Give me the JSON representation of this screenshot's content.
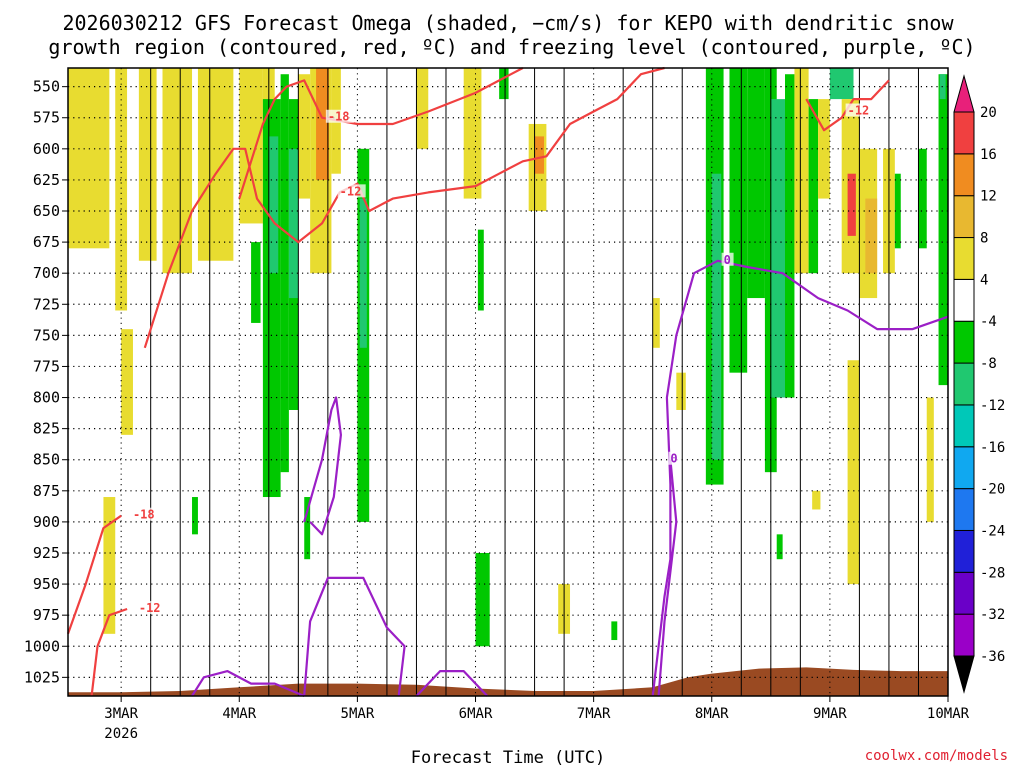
{
  "title_line1": "2026030212 GFS Forecast Omega (shaded, −cm/s) for KEPO with dendritic snow",
  "title_line2": "growth region (contoured, red, ºC) and freezing level (contoured, purple, ºC)",
  "xlabel": "Forecast Time (UTC)",
  "credit": "coolwx.com/models",
  "colors": {
    "red_contour": "#f04040",
    "purple_contour": "#9b1fc6",
    "terrain": "#9a4a22",
    "grid": "#000000"
  },
  "chart_data": {
    "type": "heatmap",
    "title": "2026030212 GFS Forecast Omega (shaded, −cm/s) for KEPO with dendritic snow growth region (contoured, red, ºC) and freezing level (contoured, purple, ºC)",
    "xlabel": "Forecast Time (UTC)",
    "ylabel": "",
    "x_range_days": [
      2.55,
      10.0
    ],
    "y_range_hpa": [
      1040,
      535
    ],
    "y_ticks": [
      550,
      575,
      600,
      625,
      650,
      675,
      700,
      725,
      750,
      775,
      800,
      825,
      850,
      875,
      900,
      925,
      950,
      975,
      1000,
      1025
    ],
    "x_ticks": [
      {
        "day": 3,
        "label": "3MAR",
        "sub": "2026"
      },
      {
        "day": 4,
        "label": "4MAR"
      },
      {
        "day": 5,
        "label": "5MAR"
      },
      {
        "day": 6,
        "label": "6MAR"
      },
      {
        "day": 7,
        "label": "7MAR"
      },
      {
        "day": 8,
        "label": "8MAR"
      },
      {
        "day": 9,
        "label": "9MAR"
      },
      {
        "day": 10,
        "label": "10MAR"
      }
    ],
    "colorbar": {
      "levels": [
        -36,
        -32,
        -28,
        -24,
        -20,
        -16,
        -12,
        -8,
        -4,
        4,
        8,
        12,
        16,
        20
      ],
      "labels": [
        "-36",
        "-32",
        "-28",
        "-24",
        "-20",
        "-16",
        "-12",
        "-8",
        "-4",
        "4",
        "8",
        "12",
        "16",
        "20"
      ],
      "colors": [
        "#b0b0b0",
        "#9a00c8",
        "#6a00c8",
        "#2020d8",
        "#1e78f0",
        "#10a8f0",
        "#00c8b8",
        "#20c870",
        "#00c800",
        "#ffffff",
        "#e8dc30",
        "#e8b830",
        "#f08c20",
        "#f04040",
        "#e8207a"
      ]
    },
    "omega_cells": [
      {
        "t0": 2.55,
        "t1": 2.9,
        "p0": 535,
        "p1": 680,
        "v": 6
      },
      {
        "t0": 2.95,
        "t1": 3.05,
        "p0": 535,
        "p1": 730,
        "v": 6
      },
      {
        "t0": 3.15,
        "t1": 3.3,
        "p0": 535,
        "p1": 690,
        "v": 6
      },
      {
        "t0": 2.85,
        "t1": 2.95,
        "p0": 880,
        "p1": 990,
        "v": 6
      },
      {
        "t0": 3.0,
        "t1": 3.1,
        "p0": 745,
        "p1": 830,
        "v": 6
      },
      {
        "t0": 3.35,
        "t1": 3.6,
        "p0": 535,
        "p1": 700,
        "v": 6
      },
      {
        "t0": 3.65,
        "t1": 3.95,
        "p0": 535,
        "p1": 690,
        "v": 6
      },
      {
        "t0": 3.6,
        "t1": 3.65,
        "p0": 880,
        "p1": 910,
        "v": -6
      },
      {
        "t0": 4.0,
        "t1": 4.2,
        "p0": 535,
        "p1": 660,
        "v": 6
      },
      {
        "t0": 4.1,
        "t1": 4.18,
        "p0": 675,
        "p1": 740,
        "v": -6
      },
      {
        "t0": 4.2,
        "t1": 4.3,
        "p0": 535,
        "p1": 690,
        "v": 6
      },
      {
        "t0": 4.2,
        "t1": 4.35,
        "p0": 560,
        "p1": 880,
        "v": -6
      },
      {
        "t0": 4.25,
        "t1": 4.33,
        "p0": 590,
        "p1": 700,
        "v": -10
      },
      {
        "t0": 4.35,
        "t1": 4.42,
        "p0": 540,
        "p1": 860,
        "v": -6
      },
      {
        "t0": 4.42,
        "t1": 4.5,
        "p0": 560,
        "p1": 810,
        "v": -6
      },
      {
        "t0": 4.42,
        "t1": 4.5,
        "p0": 600,
        "p1": 720,
        "v": -10
      },
      {
        "t0": 4.5,
        "t1": 4.6,
        "p0": 540,
        "p1": 640,
        "v": 6
      },
      {
        "t0": 4.55,
        "t1": 4.6,
        "p0": 880,
        "p1": 930,
        "v": -6
      },
      {
        "t0": 4.6,
        "t1": 4.78,
        "p0": 535,
        "p1": 700,
        "v": 6
      },
      {
        "t0": 4.65,
        "t1": 4.76,
        "p0": 535,
        "p1": 625,
        "v": 14
      },
      {
        "t0": 4.78,
        "t1": 4.86,
        "p0": 535,
        "p1": 620,
        "v": 6
      },
      {
        "t0": 5.0,
        "t1": 5.1,
        "p0": 600,
        "p1": 900,
        "v": -6
      },
      {
        "t0": 5.02,
        "t1": 5.08,
        "p0": 640,
        "p1": 760,
        "v": -10
      },
      {
        "t0": 5.5,
        "t1": 5.6,
        "p0": 535,
        "p1": 600,
        "v": 6
      },
      {
        "t0": 5.9,
        "t1": 6.05,
        "p0": 535,
        "p1": 640,
        "v": 6
      },
      {
        "t0": 6.02,
        "t1": 6.07,
        "p0": 665,
        "p1": 730,
        "v": -6
      },
      {
        "t0": 6.0,
        "t1": 6.12,
        "p0": 925,
        "p1": 1000,
        "v": -6
      },
      {
        "t0": 6.2,
        "t1": 6.28,
        "p0": 535,
        "p1": 560,
        "v": -6
      },
      {
        "t0": 6.45,
        "t1": 6.6,
        "p0": 580,
        "p1": 650,
        "v": 6
      },
      {
        "t0": 6.5,
        "t1": 6.58,
        "p0": 590,
        "p1": 620,
        "v": 12
      },
      {
        "t0": 6.7,
        "t1": 6.8,
        "p0": 950,
        "p1": 990,
        "v": 6
      },
      {
        "t0": 7.15,
        "t1": 7.2,
        "p0": 980,
        "p1": 995,
        "v": -6
      },
      {
        "t0": 7.5,
        "t1": 7.56,
        "p0": 720,
        "p1": 760,
        "v": 6
      },
      {
        "t0": 7.7,
        "t1": 7.78,
        "p0": 780,
        "p1": 810,
        "v": 6
      },
      {
        "t0": 7.95,
        "t1": 8.1,
        "p0": 535,
        "p1": 870,
        "v": -6
      },
      {
        "t0": 8.0,
        "t1": 8.08,
        "p0": 620,
        "p1": 850,
        "v": -10
      },
      {
        "t0": 8.15,
        "t1": 8.3,
        "p0": 535,
        "p1": 780,
        "v": -6
      },
      {
        "t0": 8.3,
        "t1": 8.45,
        "p0": 535,
        "p1": 720,
        "v": -6
      },
      {
        "t0": 8.45,
        "t1": 8.55,
        "p0": 535,
        "p1": 860,
        "v": -6
      },
      {
        "t0": 8.5,
        "t1": 8.62,
        "p0": 560,
        "p1": 800,
        "v": -10
      },
      {
        "t0": 8.62,
        "t1": 8.7,
        "p0": 540,
        "p1": 800,
        "v": -6
      },
      {
        "t0": 8.7,
        "t1": 8.82,
        "p0": 535,
        "p1": 700,
        "v": 6
      },
      {
        "t0": 8.82,
        "t1": 8.9,
        "p0": 560,
        "p1": 700,
        "v": -6
      },
      {
        "t0": 8.9,
        "t1": 9.0,
        "p0": 560,
        "p1": 640,
        "v": 6
      },
      {
        "t0": 8.85,
        "t1": 8.92,
        "p0": 875,
        "p1": 890,
        "v": 6
      },
      {
        "t0": 8.55,
        "t1": 8.6,
        "p0": 910,
        "p1": 930,
        "v": -6
      },
      {
        "t0": 9.0,
        "t1": 9.2,
        "p0": 535,
        "p1": 560,
        "v": -12
      },
      {
        "t0": 9.1,
        "t1": 9.25,
        "p0": 560,
        "p1": 700,
        "v": 6
      },
      {
        "t0": 9.15,
        "t1": 9.22,
        "p0": 620,
        "p1": 670,
        "v": 18
      },
      {
        "t0": 9.25,
        "t1": 9.4,
        "p0": 600,
        "p1": 720,
        "v": 6
      },
      {
        "t0": 9.3,
        "t1": 9.4,
        "p0": 640,
        "p1": 700,
        "v": 10
      },
      {
        "t0": 9.15,
        "t1": 9.25,
        "p0": 770,
        "p1": 950,
        "v": 6
      },
      {
        "t0": 9.45,
        "t1": 9.55,
        "p0": 600,
        "p1": 700,
        "v": 6
      },
      {
        "t0": 9.55,
        "t1": 9.6,
        "p0": 620,
        "p1": 680,
        "v": -6
      },
      {
        "t0": 9.75,
        "t1": 9.82,
        "p0": 600,
        "p1": 680,
        "v": -6
      },
      {
        "t0": 9.82,
        "t1": 9.88,
        "p0": 800,
        "p1": 900,
        "v": 6
      },
      {
        "t0": 9.92,
        "t1": 10.0,
        "p0": 540,
        "p1": 790,
        "v": -6
      },
      {
        "t0": 9.93,
        "t1": 9.98,
        "p0": 540,
        "p1": 560,
        "v": -12
      }
    ],
    "dgz_contours": [
      {
        "label": "-18",
        "label_at": [
          4.75,
          575
        ],
        "points": [
          [
            4.0,
            640
          ],
          [
            4.1,
            610
          ],
          [
            4.2,
            580
          ],
          [
            4.3,
            560
          ],
          [
            4.4,
            550
          ],
          [
            4.55,
            545
          ],
          [
            4.7,
            575
          ],
          [
            5.0,
            580
          ],
          [
            5.3,
            580
          ],
          [
            5.6,
            570
          ],
          [
            6.0,
            555
          ],
          [
            6.3,
            540
          ],
          [
            6.4,
            535
          ]
        ]
      },
      {
        "label": "-12",
        "label_at": [
          4.85,
          635
        ],
        "points": [
          [
            3.2,
            760
          ],
          [
            3.4,
            700
          ],
          [
            3.6,
            650
          ],
          [
            3.8,
            620
          ],
          [
            3.95,
            600
          ],
          [
            4.05,
            600
          ],
          [
            4.15,
            640
          ],
          [
            4.3,
            660
          ],
          [
            4.5,
            675
          ],
          [
            4.7,
            660
          ],
          [
            4.85,
            635
          ],
          [
            5.0,
            628
          ],
          [
            5.1,
            650
          ],
          [
            5.3,
            640
          ],
          [
            5.6,
            635
          ],
          [
            6.0,
            630
          ],
          [
            6.2,
            620
          ],
          [
            6.4,
            610
          ],
          [
            6.5,
            608
          ],
          [
            6.6,
            606
          ],
          [
            6.8,
            580
          ],
          [
            7.0,
            570
          ],
          [
            7.2,
            560
          ],
          [
            7.4,
            540
          ],
          [
            7.6,
            535
          ]
        ]
      },
      {
        "label": "-18",
        "label_at": [
          3.1,
          895
        ],
        "points": [
          [
            2.55,
            990
          ],
          [
            2.7,
            950
          ],
          [
            2.85,
            905
          ],
          [
            3.0,
            895
          ]
        ]
      },
      {
        "label": "-12",
        "label_at": [
          3.15,
          970
        ],
        "points": [
          [
            2.75,
            1040
          ],
          [
            2.8,
            1000
          ],
          [
            2.9,
            975
          ],
          [
            3.05,
            970
          ]
        ]
      },
      {
        "label": "-12",
        "label_at": [
          9.15,
          570
        ],
        "points": [
          [
            8.8,
            560
          ],
          [
            8.95,
            585
          ],
          [
            9.1,
            575
          ],
          [
            9.2,
            560
          ],
          [
            9.35,
            560
          ],
          [
            9.5,
            545
          ]
        ]
      }
    ],
    "freezing_contours": [
      {
        "label": "0",
        "label_at": [
          8.1,
          690
        ],
        "points": [
          [
            7.5,
            1040
          ],
          [
            7.55,
            1000
          ],
          [
            7.6,
            960
          ],
          [
            7.65,
            930
          ],
          [
            7.65,
            870
          ],
          [
            7.62,
            800
          ],
          [
            7.7,
            750
          ],
          [
            7.85,
            700
          ],
          [
            8.05,
            690
          ],
          [
            8.3,
            695
          ],
          [
            8.6,
            700
          ],
          [
            8.9,
            720
          ],
          [
            9.15,
            730
          ],
          [
            9.4,
            745
          ],
          [
            9.7,
            745
          ],
          [
            10.0,
            735
          ]
        ]
      },
      {
        "label": "0",
        "label_at": [
          7.65,
          850
        ],
        "points": [
          [
            7.65,
            850
          ],
          [
            7.7,
            900
          ],
          [
            7.65,
            940
          ],
          [
            7.6,
            980
          ],
          [
            7.55,
            1040
          ]
        ]
      },
      {
        "label": "",
        "label_at": [
          4.85,
          820
        ],
        "points": [
          [
            4.55,
            900
          ],
          [
            4.7,
            850
          ],
          [
            4.78,
            810
          ],
          [
            4.82,
            800
          ],
          [
            4.86,
            830
          ],
          [
            4.8,
            880
          ],
          [
            4.7,
            910
          ],
          [
            4.6,
            900
          ]
        ]
      },
      {
        "label": "",
        "label_at": [
          4.8,
          950
        ],
        "points": [
          [
            4.55,
            1040
          ],
          [
            4.6,
            980
          ],
          [
            4.75,
            945
          ],
          [
            5.05,
            945
          ],
          [
            5.25,
            985
          ],
          [
            5.4,
            1000
          ],
          [
            5.35,
            1040
          ]
        ]
      },
      {
        "label": "",
        "label_at": [
          3.8,
          1025
        ],
        "points": [
          [
            3.6,
            1040
          ],
          [
            3.7,
            1025
          ],
          [
            3.9,
            1020
          ],
          [
            4.1,
            1030
          ],
          [
            4.3,
            1030
          ],
          [
            4.55,
            1040
          ]
        ]
      },
      {
        "label": "",
        "label_at": [
          5.8,
          1020
        ],
        "points": [
          [
            5.5,
            1040
          ],
          [
            5.7,
            1020
          ],
          [
            5.9,
            1020
          ],
          [
            6.1,
            1040
          ]
        ]
      }
    ],
    "terrain_surface": [
      [
        2.55,
        1037
      ],
      [
        3.0,
        1037
      ],
      [
        3.5,
        1036
      ],
      [
        4.0,
        1033
      ],
      [
        4.5,
        1030
      ],
      [
        5.0,
        1030
      ],
      [
        5.5,
        1031
      ],
      [
        6.0,
        1034
      ],
      [
        6.5,
        1036
      ],
      [
        7.0,
        1036
      ],
      [
        7.5,
        1033
      ],
      [
        7.8,
        1025
      ],
      [
        8.0,
        1022
      ],
      [
        8.4,
        1018
      ],
      [
        8.8,
        1017
      ],
      [
        9.2,
        1019
      ],
      [
        9.6,
        1020
      ],
      [
        10.0,
        1020
      ]
    ]
  }
}
